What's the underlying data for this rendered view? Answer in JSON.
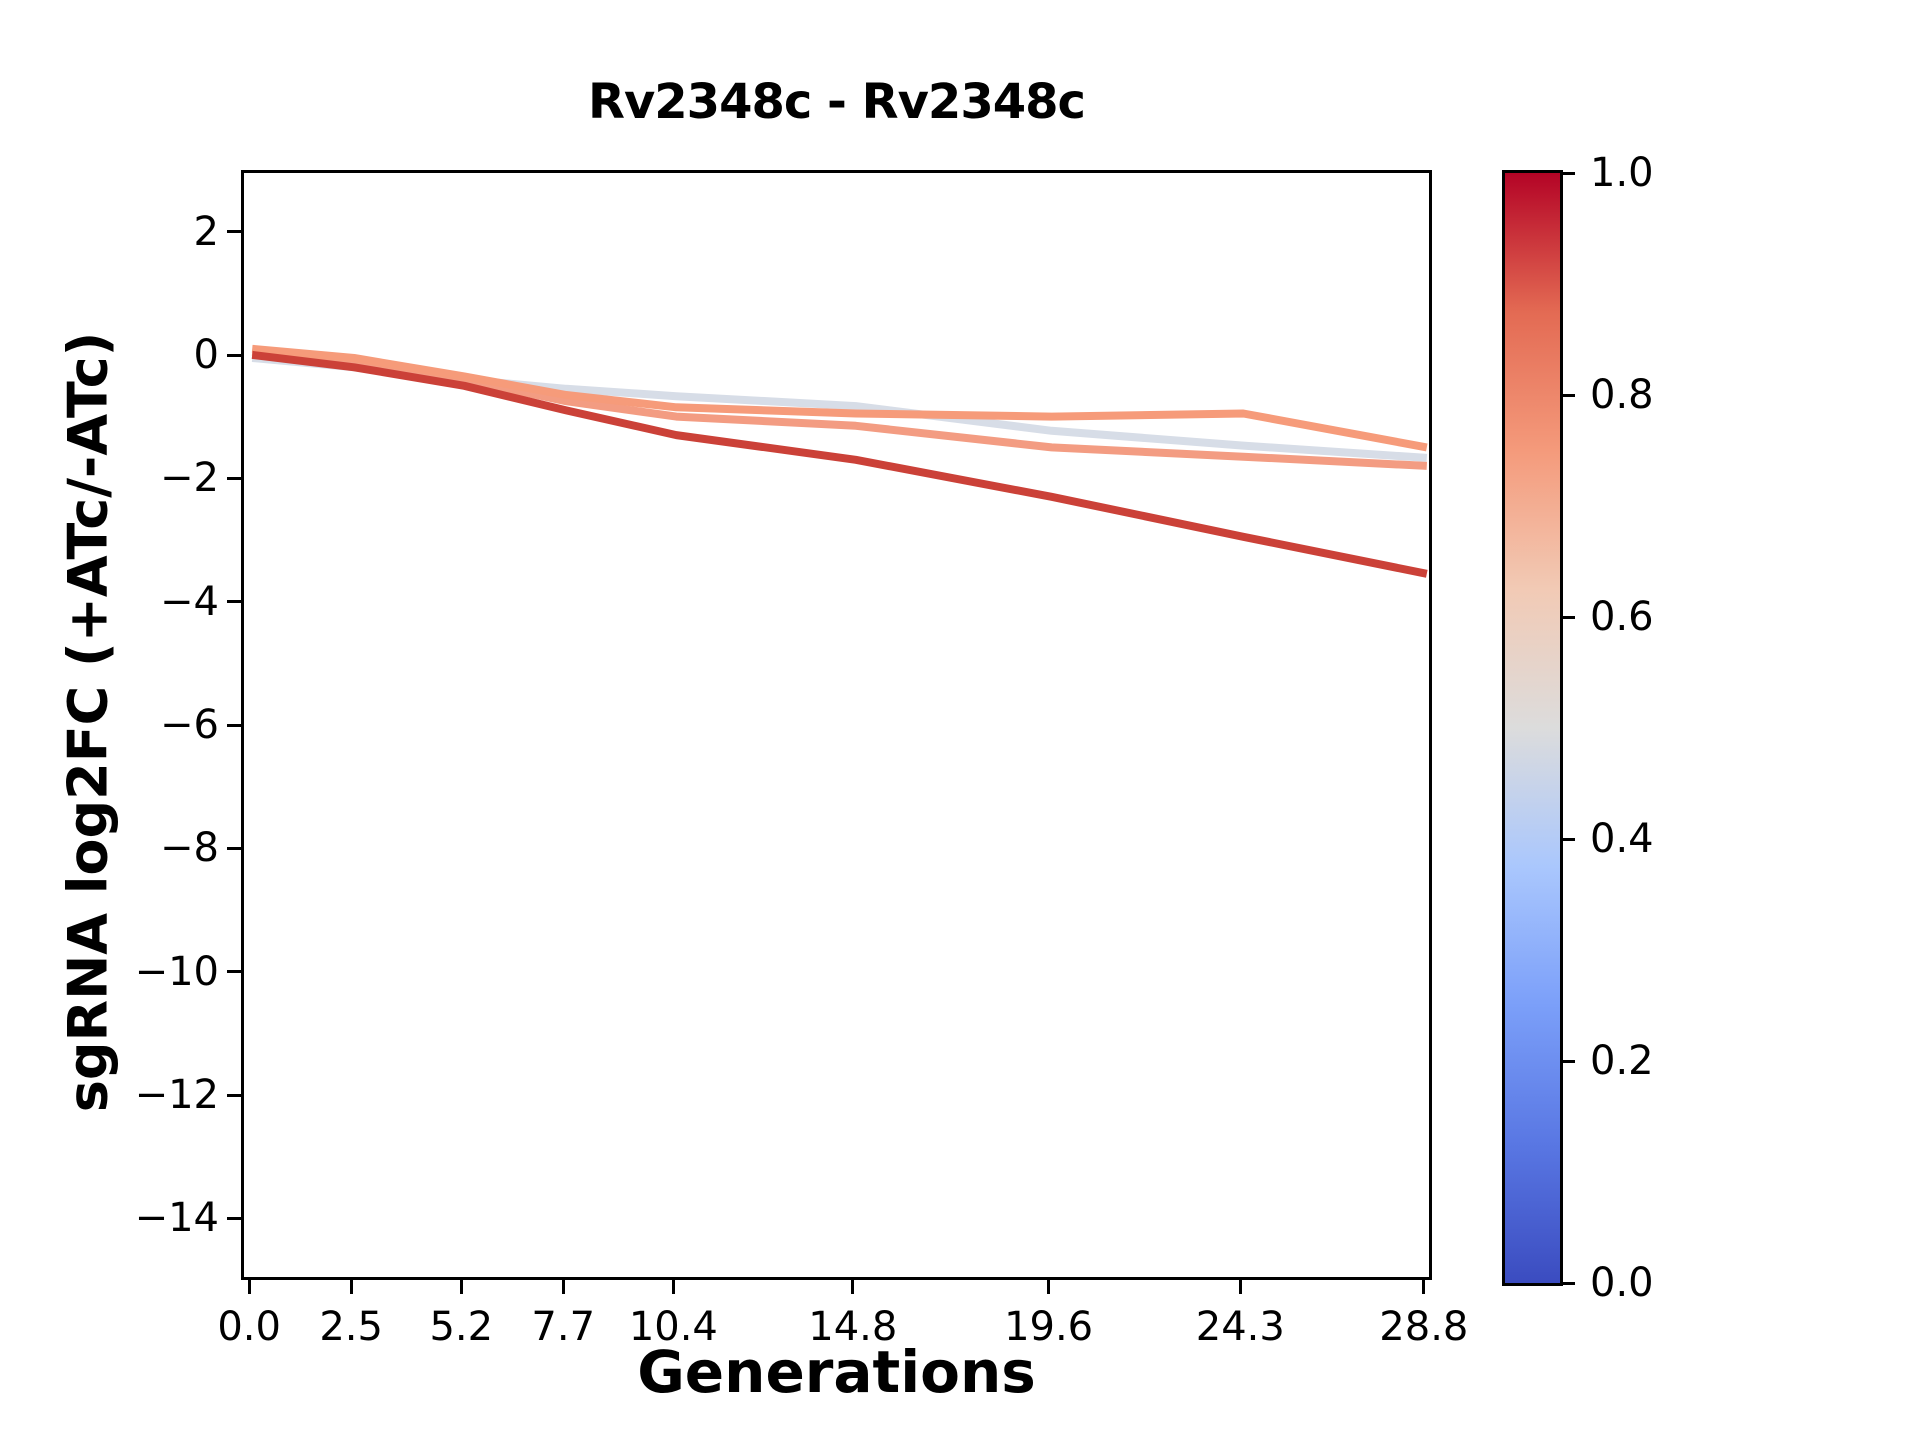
{
  "chart_data": {
    "type": "line",
    "title": "Rv2348c - Rv2348c",
    "xlabel": "Generations",
    "ylabel": "sgRNA log2FC (+ATc/-ATc)",
    "grid": false,
    "legend": "none",
    "xlim": [
      -0.2,
      29.0
    ],
    "ylim": [
      -15.0,
      3.0
    ],
    "x": [
      0.0,
      2.5,
      5.2,
      7.7,
      10.4,
      14.8,
      19.6,
      24.3,
      28.8
    ],
    "x_tick_labels": [
      "0.0",
      "2.5",
      "5.2",
      "7.7",
      "10.4",
      "14.8",
      "19.6",
      "24.3",
      "28.8"
    ],
    "y_ticks": [
      2,
      0,
      -2,
      -4,
      -6,
      -8,
      -10,
      -12,
      -14
    ],
    "y_tick_labels": [
      "2",
      "0",
      "−2",
      "−4",
      "−6",
      "−8",
      "−10",
      "−12",
      "−14"
    ],
    "series": [
      {
        "color": "#d7dde7",
        "color_value": 0.44,
        "values": [
          0.0,
          -0.15,
          -0.35,
          -0.5,
          -0.62,
          -0.78,
          -1.18,
          -1.42,
          -1.62
        ]
      },
      {
        "color": "#f39c82",
        "color_value": 0.7,
        "values": [
          0.1,
          -0.05,
          -0.35,
          -0.7,
          -0.95,
          -1.1,
          -1.45,
          -1.6,
          -1.75
        ]
      },
      {
        "color": "#f69b7a",
        "color_value": 0.71,
        "values": [
          0.15,
          0.0,
          -0.3,
          -0.6,
          -0.8,
          -0.9,
          -0.95,
          -0.9,
          -1.45
        ]
      },
      {
        "color": "#cb4138",
        "color_value": 0.92,
        "values": [
          0.05,
          -0.15,
          -0.45,
          -0.85,
          -1.25,
          -1.65,
          -2.25,
          -2.9,
          -3.5
        ]
      }
    ],
    "colorbar": {
      "cmap": "coolwarm",
      "range": [
        0.0,
        1.0
      ],
      "tick_labels": [
        "1.0",
        "0.8",
        "0.6",
        "0.4",
        "0.2",
        "0.0"
      ],
      "gradient_bottom_to_top": [
        "#3b4cc0",
        "#5977e3",
        "#7b9ff9",
        "#aac7fd",
        "#dcdcdc",
        "#f2cab5",
        "#f49a7b",
        "#e36a53",
        "#b40426"
      ]
    }
  }
}
